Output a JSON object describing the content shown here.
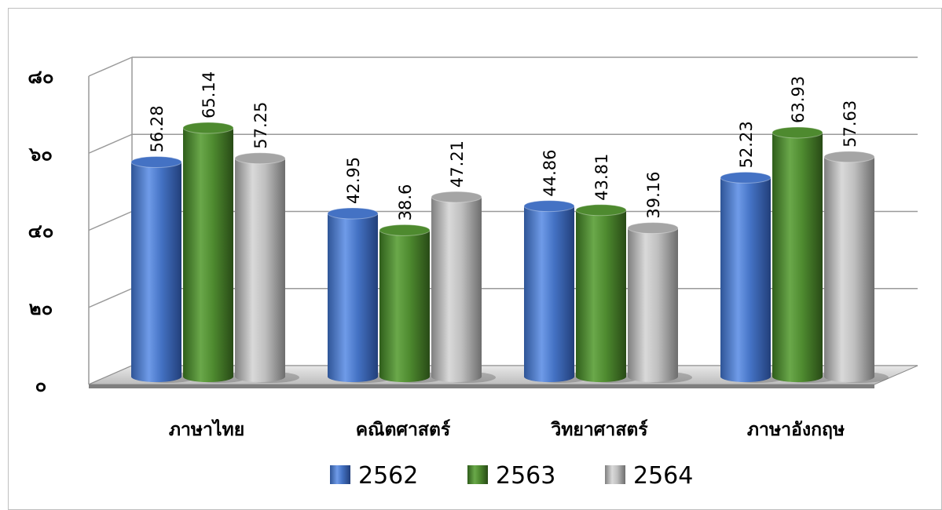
{
  "chart_data": {
    "type": "bar",
    "categories": [
      "ภาษาไทย",
      "คณิตศาสตร์",
      "วิทยาศาสตร์",
      "ภาษาอังกฤษ"
    ],
    "series": [
      {
        "name": "2562",
        "values": [
          56.28,
          42.95,
          44.86,
          52.23
        ],
        "color": "#4472c4"
      },
      {
        "name": "2563",
        "values": [
          65.14,
          38.6,
          43.81,
          63.93
        ],
        "color": "#4e8a2f"
      },
      {
        "name": "2564",
        "values": [
          57.25,
          47.21,
          39.16,
          57.63
        ],
        "color": "#a5a5a5"
      }
    ],
    "y_tick_labels": [
      "๐",
      "๒๐",
      "๔๐",
      "๖๐",
      "๘๐"
    ],
    "y_ticks": [
      0,
      20,
      40,
      60,
      80
    ],
    "ylim": [
      0,
      80
    ],
    "grid": true,
    "legend_position": "bottom",
    "style": "3d-cylinder",
    "data_labels": true
  }
}
